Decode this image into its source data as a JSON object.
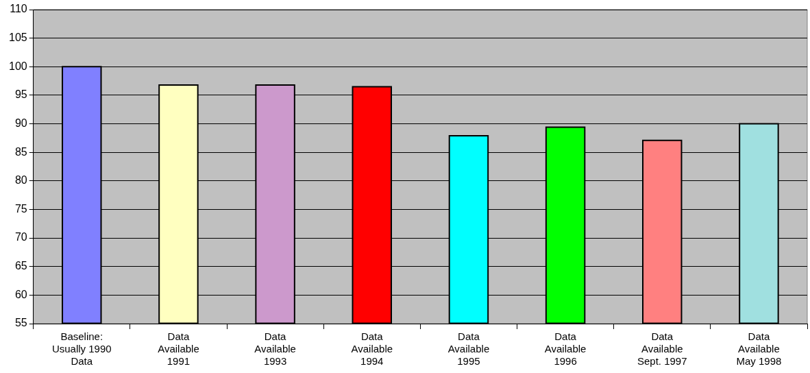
{
  "chart_data": {
    "type": "bar",
    "categories": [
      "Baseline:\nUsually 1990\nData",
      "Data\nAvailable\n1991",
      "Data\nAvailable\n1993",
      "Data\nAvailable\n1994",
      "Data\nAvailable\n1995",
      "Data\nAvailable\n1996",
      "Data\nAvailable\nSept. 1997",
      "Data\nAvailable\nMay 1998"
    ],
    "values": [
      100,
      96.8,
      96.8,
      96.5,
      87.9,
      89.4,
      87.1,
      90
    ],
    "colors": [
      "#8080ff",
      "#ffffc0",
      "#cc99cc",
      "#ff0000",
      "#00ffff",
      "#00ff00",
      "#ff8080",
      "#a0e0e0"
    ],
    "ylim": [
      55,
      110
    ],
    "yticks": [
      55,
      60,
      65,
      70,
      75,
      80,
      85,
      90,
      95,
      100,
      105,
      110
    ],
    "grid": "y",
    "legend": false
  }
}
